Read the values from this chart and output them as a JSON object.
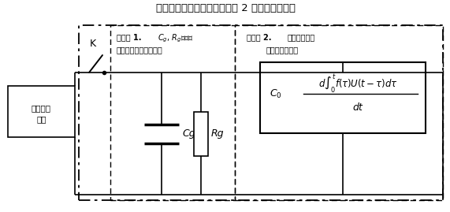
{
  "title": "油纸绝缘极化等效电路模型由 2 个虚线部分组成",
  "title_fontsize": 9.5,
  "background_color": "#ffffff",
  "fig_width": 5.71,
  "fig_height": 2.69,
  "dpi": 100,
  "source_text": "直流脉冲\n电源",
  "label_box1_bold": "虚线框 1.",
  "label_box1_line1_subscript": "Cₘ, Rₘ分别为",
  "label_box1_line2": "绝缘体几何电容和电阻",
  "label_box2_bold": "虚线框 2.",
  "label_box2_line1": "油纸绝缘系统",
  "label_box2_line2": "介质极化示意图",
  "K_label": "K",
  "Cg_label": "Cg",
  "Rg_label": "Rg",
  "line_color": "#000000"
}
